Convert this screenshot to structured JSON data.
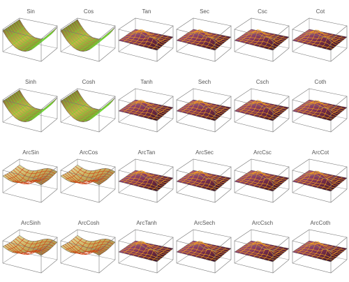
{
  "panels": [
    [
      "Sin",
      "Cos",
      "Tan",
      "Sec",
      "Csc",
      "Cot"
    ],
    [
      "Sinh",
      "Cosh",
      "Tanh",
      "Sech",
      "Csch",
      "Coth"
    ],
    [
      "ArcSin",
      "ArcCos",
      "ArcTan",
      "ArcSec",
      "ArcCsc",
      "ArcCot"
    ],
    [
      "ArcSinh",
      "ArcCosh",
      "ArcTanh",
      "ArcSech",
      "ArcCsch",
      "ArcCoth"
    ]
  ]
}
